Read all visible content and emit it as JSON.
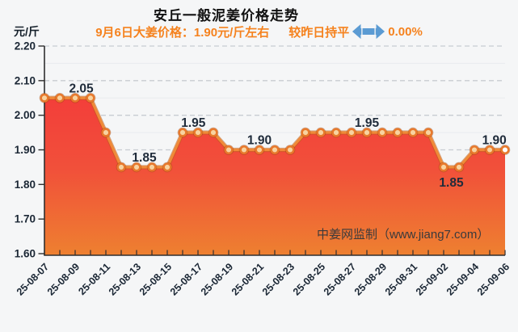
{
  "header": {
    "title": "安丘一般泥姜价格走势",
    "unit_label": "元/斤",
    "subtitle": {
      "price_part": "9月6日大姜价格：1.90元/斤左右",
      "trend_part": "较昨日持平",
      "change_part": "0.00%",
      "arrow_icon": "left-right-arrow",
      "text_color": "#f5821e",
      "arrow_color": "#5b9bd3"
    }
  },
  "watermark": "中姜网监制（www.jiang7.com）",
  "chart_data": {
    "type": "area",
    "title": "安丘一般泥姜价格走势",
    "xlabel": "",
    "ylabel": "元/斤",
    "ylim": [
      1.6,
      2.2
    ],
    "y_ticks": [
      2.2,
      2.1,
      2.0,
      1.9,
      1.8,
      1.7,
      1.6
    ],
    "y_minor_ticks": [
      2.15,
      2.05,
      1.95,
      1.85,
      1.75,
      1.65
    ],
    "grid": "dashed major horizontal, faint solid minor",
    "legend_position": "none",
    "x": [
      "25-08-07",
      "25-08-08",
      "25-08-09",
      "25-08-10",
      "25-08-11",
      "25-08-12",
      "25-08-13",
      "25-08-14",
      "25-08-15",
      "25-08-16",
      "25-08-17",
      "25-08-18",
      "25-08-19",
      "25-08-20",
      "25-08-21",
      "25-08-22",
      "25-08-23",
      "25-08-24",
      "25-08-25",
      "25-08-26",
      "25-08-27",
      "25-08-28",
      "25-08-29",
      "25-08-30",
      "25-08-31",
      "25-09-01",
      "25-09-02",
      "25-09-03",
      "25-09-04",
      "25-09-05",
      "25-09-06"
    ],
    "x_tick_labels": [
      "25-08-07",
      "25-08-09",
      "25-08-11",
      "25-08-13",
      "25-08-15",
      "25-08-17",
      "25-08-19",
      "25-08-21",
      "25-08-23",
      "25-08-25",
      "25-08-27",
      "25-08-29",
      "25-08-31",
      "25-09-02",
      "25-09-04",
      "25-09-06"
    ],
    "series": [
      {
        "name": "安丘一般泥姜价格",
        "values": [
          2.05,
          2.05,
          2.05,
          2.05,
          1.95,
          1.85,
          1.85,
          1.85,
          1.85,
          1.95,
          1.95,
          1.95,
          1.9,
          1.9,
          1.9,
          1.9,
          1.9,
          1.95,
          1.95,
          1.95,
          1.95,
          1.95,
          1.95,
          1.95,
          1.95,
          1.95,
          1.85,
          1.85,
          1.9,
          1.9,
          1.9
        ]
      }
    ],
    "data_labels": [
      {
        "text": "2.05",
        "index": 2.4,
        "value": 2.05,
        "placement": "above"
      },
      {
        "text": "1.85",
        "index": 6.5,
        "value": 1.85,
        "placement": "above"
      },
      {
        "text": "1.95",
        "index": 9.7,
        "value": 1.95,
        "placement": "above"
      },
      {
        "text": "1.90",
        "index": 14.0,
        "value": 1.9,
        "placement": "above"
      },
      {
        "text": "1.95",
        "index": 21.0,
        "value": 1.95,
        "placement": "above"
      },
      {
        "text": "1.85",
        "index": 26.5,
        "value": 1.85,
        "placement": "below"
      },
      {
        "text": "1.90",
        "index": 29.3,
        "value": 1.9,
        "placement": "above"
      }
    ],
    "colors": {
      "line": "#f08a38",
      "line_shadow": "#b85c1a",
      "area_top": "#f33e3a",
      "area_mid": "#f1503a",
      "area_bottom": "#ee8030",
      "marker_ring": "#e8792c",
      "marker_center": "#f8d3a0",
      "marker_center_last": "#ffffff",
      "axis": "#2f2f2f",
      "major_grid": "#c8ccd2",
      "minor_grid": "#e9ebee",
      "tick_label": "#1b2735",
      "data_label": "#202c3b"
    }
  }
}
